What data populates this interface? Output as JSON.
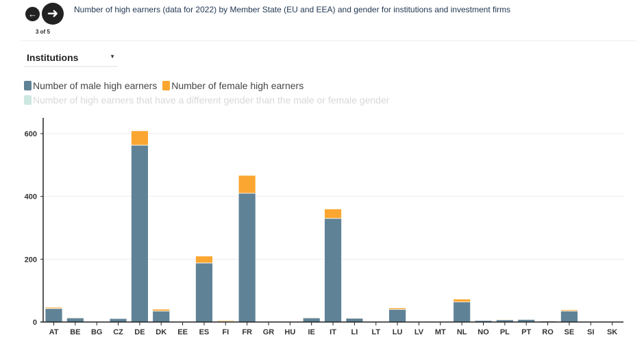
{
  "header": {
    "prev_icon": "arrow-left-icon",
    "next_icon": "arrow-right-icon",
    "counter": "3 of 5",
    "title": "Number of high earners (data for 2022) by Member State (EU and EEA) and gender for institutions and investment firms"
  },
  "filter": {
    "selected": "Institutions"
  },
  "colors": {
    "male": "#5f8296",
    "female": "#fba631",
    "other": "#cde8e0"
  },
  "chart_data": {
    "type": "bar",
    "stacked": true,
    "categories": [
      "AT",
      "BE",
      "BG",
      "CZ",
      "DE",
      "DK",
      "EE",
      "ES",
      "FI",
      "FR",
      "GR",
      "HU",
      "IE",
      "IT",
      "LI",
      "LT",
      "LU",
      "LV",
      "MT",
      "NL",
      "NO",
      "PL",
      "PT",
      "RO",
      "SE",
      "SI",
      "SK"
    ],
    "series": [
      {
        "name": "Number of male high earners",
        "values": [
          43,
          13,
          0,
          11,
          563,
          35,
          0,
          188,
          2,
          410,
          2,
          2,
          13,
          330,
          12,
          0,
          40,
          0,
          0,
          64,
          5,
          7,
          8,
          3,
          35,
          0,
          0
        ]
      },
      {
        "name": "Number of female high earners",
        "values": [
          4,
          2,
          0,
          0,
          46,
          6,
          0,
          22,
          3,
          57,
          0,
          0,
          2,
          30,
          2,
          0,
          5,
          0,
          0,
          9,
          1,
          2,
          0,
          0,
          4,
          0,
          0
        ]
      },
      {
        "name": "Number of high earners that have a different gender than the male or female gender",
        "values": [
          0,
          0,
          0,
          0,
          0,
          0,
          0,
          0,
          0,
          0,
          0,
          0,
          0,
          0,
          0,
          0,
          0,
          0,
          0,
          0,
          0,
          0,
          0,
          0,
          0,
          0,
          0
        ],
        "hidden": true
      }
    ],
    "yticks": [
      0,
      200,
      400,
      600
    ],
    "ylim": [
      0,
      650
    ],
    "grid": true,
    "legend": "top-left"
  }
}
